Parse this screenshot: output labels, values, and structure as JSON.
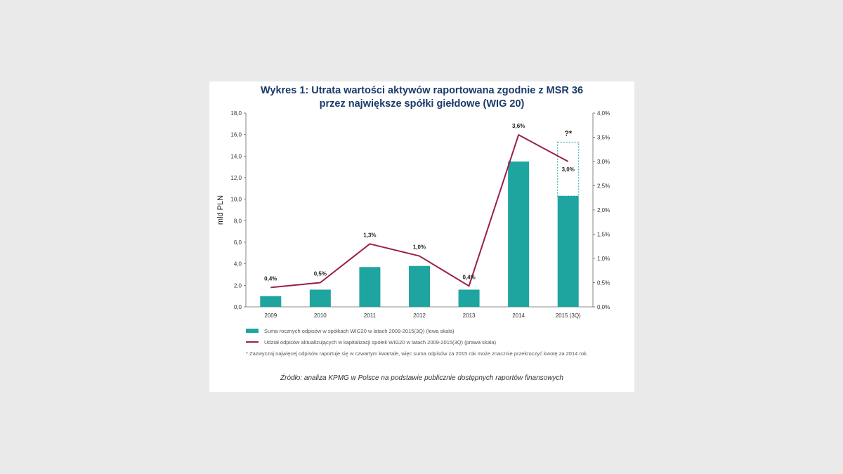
{
  "title_line1": "Wykres 1: Utrata wartości aktywów raportowana zgodnie z MSR 36",
  "title_line2": "przez największe spółki giełdowe (WIG 20)",
  "legend": {
    "bar_label": "Suma rocznych odpisów w spółkach WIG20 w latach 2009-2015(3Q) (lewa skala)",
    "line_label": "Udział odpisów aktualizujących w kapitalizacji spółek WIG20 w latach 2009-2015(3Q) (prawa skala)"
  },
  "footnote": "* Zazwyczaj najwięcej odpisów raportuje się w czwartym kwartale, więc suma odpisów za 2015 rok może znacznie przekroczyć kwotę za 2014 rok.",
  "source": "Źródło: analiza KPMG w Polsce na podstawie publicznie dostępnych raportów finansowych",
  "colors": {
    "bar": "#1fa5a0",
    "line": "#9b1e4e",
    "title": "#1b3a6b"
  },
  "chart_data": {
    "type": "bar",
    "categories": [
      "2009",
      "2010",
      "2011",
      "2012",
      "2013",
      "2014",
      "2015 (3Q)"
    ],
    "series": [
      {
        "name": "Suma rocznych odpisów w spółkach WIG20 w latach 2009-2015(3Q) (lewa skala)",
        "type": "bar",
        "axis": "left",
        "values": [
          1.0,
          1.6,
          3.7,
          3.8,
          1.6,
          13.5,
          10.3
        ]
      },
      {
        "name": "Udział odpisów aktualizujących w kapitalizacji spółek WIG20 w latach 2009-2015(3Q) (prawa skala)",
        "type": "line",
        "axis": "right",
        "values": [
          0.4,
          0.5,
          1.3,
          1.05,
          0.43,
          3.55,
          3.0
        ],
        "labels": [
          "0,4%",
          "0,5%",
          "1,3%",
          "1,0%",
          "0,4%",
          "3,6%",
          "3,0%"
        ]
      }
    ],
    "ylabel": "mld PLN",
    "ylim": [
      0,
      18
    ],
    "y_ticks": [
      "0,0",
      "2,0",
      "4,0",
      "6,0",
      "8,0",
      "10,0",
      "12,0",
      "14,0",
      "16,0",
      "18,0"
    ],
    "y2lim": [
      0,
      4
    ],
    "y2_ticks": [
      "0,0%",
      "0,5%",
      "1,0%",
      "1,5%",
      "2,0%",
      "2,5%",
      "3,0%",
      "3,5%",
      "4,0%"
    ],
    "projection": {
      "category": "2015 (3Q)",
      "upper_value": 15.3,
      "label": "?*"
    },
    "grid": false,
    "legend_position": "bottom"
  }
}
